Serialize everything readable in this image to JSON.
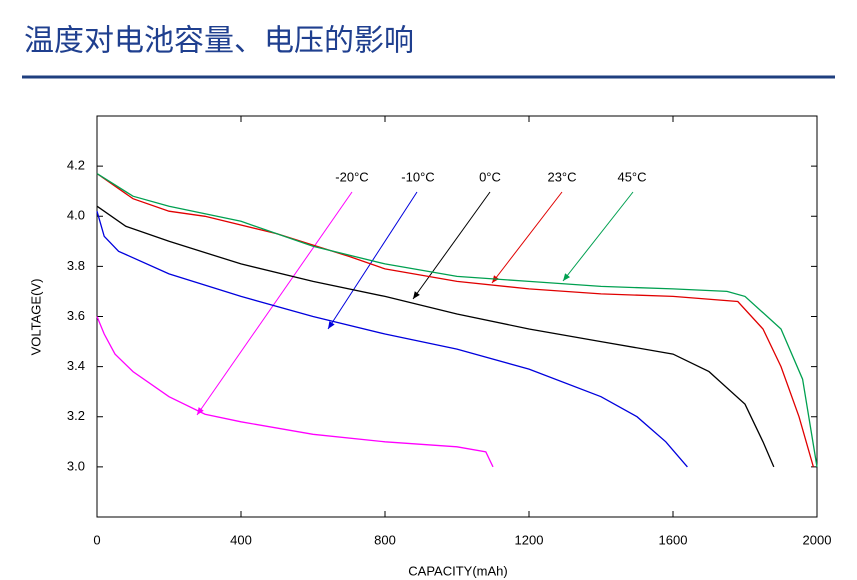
{
  "chart_data": {
    "type": "line",
    "title": "温度对电池容量、电压的影响",
    "x_label": "CAPACITY(mAh)",
    "y_label": "VOLTAGE(V)",
    "xlim": [
      0,
      2000
    ],
    "ylim": [
      2.8,
      4.4
    ],
    "xticks": [
      0,
      400,
      800,
      1200,
      1600,
      2000
    ],
    "yticks": [
      {
        "value": 3,
        "label": "3.0"
      },
      3.2,
      3.4,
      3.6,
      3.8,
      {
        "value": 4,
        "label": "4.0"
      },
      4.2
    ],
    "grid": false,
    "series": [
      {
        "name": "-20°C",
        "color": "#ff00ff",
        "x": [
          0,
          20,
          50,
          100,
          200,
          300,
          400,
          600,
          800,
          1000,
          1080,
          1100
        ],
        "values": [
          3.6,
          3.53,
          3.45,
          3.38,
          3.28,
          3.21,
          3.18,
          3.13,
          3.1,
          3.08,
          3.06,
          3.0
        ]
      },
      {
        "name": "-10°C",
        "color": "#0000dd",
        "x": [
          0,
          20,
          60,
          200,
          400,
          600,
          800,
          1000,
          1200,
          1400,
          1500,
          1580,
          1640
        ],
        "values": [
          4.02,
          3.92,
          3.86,
          3.77,
          3.68,
          3.6,
          3.53,
          3.47,
          3.39,
          3.28,
          3.2,
          3.1,
          3.0
        ]
      },
      {
        "name": "0°C",
        "color": "#000000",
        "x": [
          0,
          80,
          200,
          400,
          600,
          800,
          1000,
          1200,
          1400,
          1600,
          1700,
          1800,
          1850,
          1880
        ],
        "values": [
          4.04,
          3.96,
          3.9,
          3.81,
          3.74,
          3.68,
          3.61,
          3.55,
          3.5,
          3.45,
          3.38,
          3.25,
          3.1,
          3.0
        ]
      },
      {
        "name": "23°C",
        "color": "#e00000",
        "x": [
          0,
          100,
          200,
          300,
          500,
          700,
          800,
          1000,
          1200,
          1400,
          1600,
          1780,
          1850,
          1900,
          1950,
          1990
        ],
        "values": [
          4.17,
          4.07,
          4.02,
          4.0,
          3.93,
          3.84,
          3.79,
          3.74,
          3.71,
          3.69,
          3.68,
          3.66,
          3.55,
          3.4,
          3.2,
          3.0
        ]
      },
      {
        "name": "45°C",
        "color": "#00a050",
        "x": [
          0,
          100,
          200,
          400,
          600,
          800,
          1000,
          1200,
          1400,
          1600,
          1750,
          1800,
          1900,
          1960,
          2000
        ],
        "values": [
          4.17,
          4.08,
          4.04,
          3.98,
          3.88,
          3.81,
          3.76,
          3.74,
          3.72,
          3.71,
          3.7,
          3.68,
          3.55,
          3.35,
          3.0
        ]
      }
    ]
  }
}
